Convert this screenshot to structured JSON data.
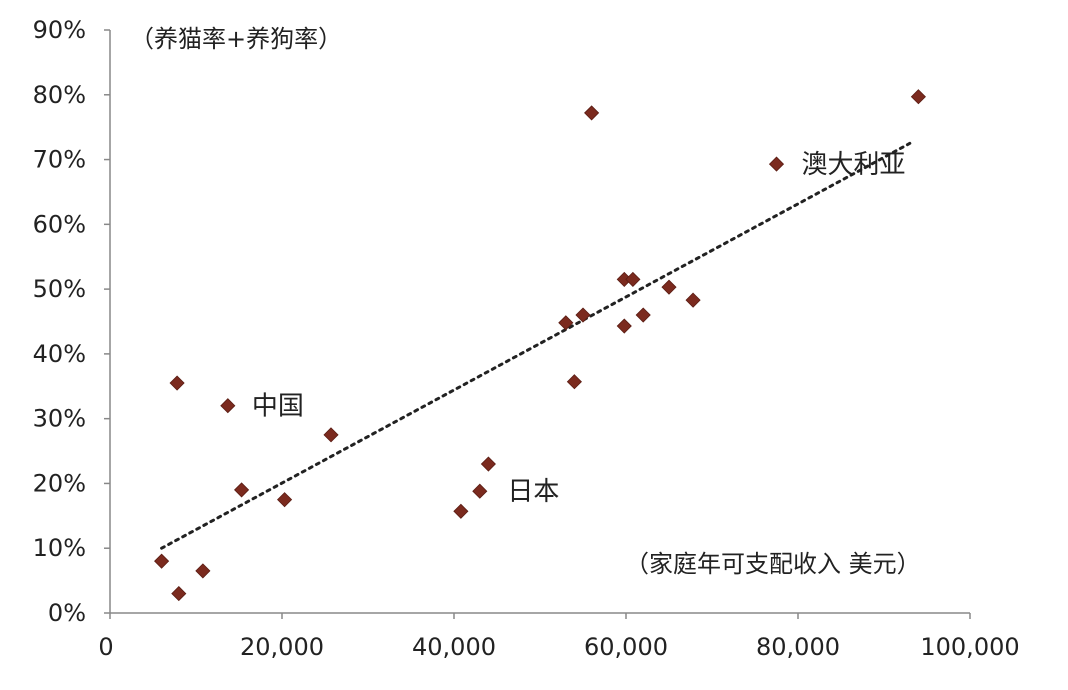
{
  "chart_data": {
    "type": "scatter",
    "title": "",
    "xlabel": "（家庭年可支配收入 美元）",
    "ylabel": "（养猫率+养狗率）",
    "xlim": [
      0,
      100000
    ],
    "ylim": [
      0,
      0.9
    ],
    "x_ticks": [
      0,
      20000,
      40000,
      60000,
      80000,
      100000
    ],
    "x_tick_labels": [
      "0",
      "20,000",
      "40,000",
      "60,000",
      "80,000",
      "100,000"
    ],
    "y_ticks": [
      0,
      0.1,
      0.2,
      0.3,
      0.4,
      0.5,
      0.6,
      0.7,
      0.8,
      0.9
    ],
    "y_tick_labels": [
      "0%",
      "10%",
      "20%",
      "30%",
      "40%",
      "50%",
      "60%",
      "70%",
      "80%",
      "90%"
    ],
    "grid": false,
    "legend": "none",
    "marker_color": "#7b2a1e",
    "trendline": {
      "style": "dotted",
      "color": "#222222",
      "x": [
        6000,
        93000
      ],
      "y": [
        0.1,
        0.725
      ]
    },
    "points": [
      {
        "x": 6000,
        "y": 0.08
      },
      {
        "x": 7800,
        "y": 0.355
      },
      {
        "x": 8000,
        "y": 0.03
      },
      {
        "x": 10800,
        "y": 0.065
      },
      {
        "x": 13700,
        "y": 0.32
      },
      {
        "x": 15300,
        "y": 0.19
      },
      {
        "x": 20300,
        "y": 0.175
      },
      {
        "x": 25700,
        "y": 0.275
      },
      {
        "x": 40800,
        "y": 0.157
      },
      {
        "x": 43000,
        "y": 0.188
      },
      {
        "x": 44000,
        "y": 0.23
      },
      {
        "x": 53000,
        "y": 0.448
      },
      {
        "x": 54000,
        "y": 0.357
      },
      {
        "x": 55000,
        "y": 0.46
      },
      {
        "x": 56000,
        "y": 0.772
      },
      {
        "x": 59800,
        "y": 0.443
      },
      {
        "x": 59800,
        "y": 0.515
      },
      {
        "x": 60800,
        "y": 0.515
      },
      {
        "x": 62000,
        "y": 0.46
      },
      {
        "x": 65000,
        "y": 0.503
      },
      {
        "x": 67800,
        "y": 0.483
      },
      {
        "x": 77500,
        "y": 0.693
      },
      {
        "x": 94000,
        "y": 0.797
      }
    ],
    "annotations": [
      {
        "text": "中国",
        "x": 16500,
        "y": 0.32
      },
      {
        "text": "日本",
        "x": 46200,
        "y": 0.188
      },
      {
        "text": "澳大利亚",
        "x": 80400,
        "y": 0.693
      }
    ]
  }
}
